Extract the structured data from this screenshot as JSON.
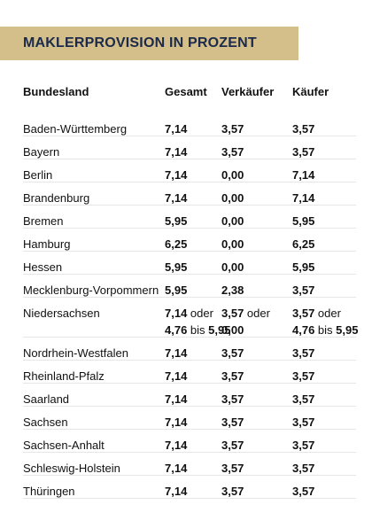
{
  "title": "MAKLERPROVISION IN PROZENT",
  "headers": {
    "bundesland": "Bundesland",
    "gesamt": "Gesamt",
    "verkaeufer": "Verkäufer",
    "kaeufer": "Käufer"
  },
  "rows": [
    {
      "land": "Baden-Württemberg",
      "gesamt": "7,14",
      "verkaeufer": "3,57",
      "kaeufer": "3,57"
    },
    {
      "land": "Bayern",
      "gesamt": "7,14",
      "verkaeufer": "3,57",
      "kaeufer": "3,57"
    },
    {
      "land": "Berlin",
      "gesamt": "7,14",
      "verkaeufer": "0,00",
      "kaeufer": "7,14"
    },
    {
      "land": "Brandenburg",
      "gesamt": "7,14",
      "verkaeufer": "0,00",
      "kaeufer": "7,14"
    },
    {
      "land": "Bremen",
      "gesamt": "5,95",
      "verkaeufer": "0,00",
      "kaeufer": "5,95"
    },
    {
      "land": "Hamburg",
      "gesamt": "6,25",
      "verkaeufer": "0,00",
      "kaeufer": "6,25"
    },
    {
      "land": "Hessen",
      "gesamt": "5,95",
      "verkaeufer": "0,00",
      "kaeufer": "5,95"
    },
    {
      "land": "Mecklenburg-Vorpommern",
      "gesamt": "5,95",
      "verkaeufer": "2,38",
      "kaeufer": "3,57"
    },
    {
      "land": "Niedersachsen",
      "gesamt_line1_value": "7,14",
      "gesamt_line1_oder": " oder",
      "gesamt_line2_a": "4,76",
      "gesamt_line2_bis": " bis ",
      "gesamt_line2_b": "5,95",
      "verkaeufer_line1_value": "3,57",
      "verkaeufer_line1_oder": " oder",
      "verkaeufer_line2": "0,00",
      "kaeufer_line1_value": "3,57",
      "kaeufer_line1_oder": " oder",
      "kaeufer_line2_a": "4,76",
      "kaeufer_line2_bis": " bis ",
      "kaeufer_line2_b": "5,95"
    },
    {
      "land": "Nordrhein-Westfalen",
      "gesamt": "7,14",
      "verkaeufer": "3,57",
      "kaeufer": "3,57"
    },
    {
      "land": "Rheinland-Pfalz",
      "gesamt": "7,14",
      "verkaeufer": "3,57",
      "kaeufer": "3,57"
    },
    {
      "land": "Saarland",
      "gesamt": "7,14",
      "verkaeufer": "3,57",
      "kaeufer": "3,57"
    },
    {
      "land": "Sachsen",
      "gesamt": "7,14",
      "verkaeufer": "3,57",
      "kaeufer": "3,57"
    },
    {
      "land": "Sachsen-Anhalt",
      "gesamt": "7,14",
      "verkaeufer": "3,57",
      "kaeufer": "3,57"
    },
    {
      "land": "Schleswig-Holstein",
      "gesamt": "7,14",
      "verkaeufer": "3,57",
      "kaeufer": "3,57"
    },
    {
      "land": "Thüringen",
      "gesamt": "7,14",
      "verkaeufer": "3,57",
      "kaeufer": "3,57"
    }
  ]
}
